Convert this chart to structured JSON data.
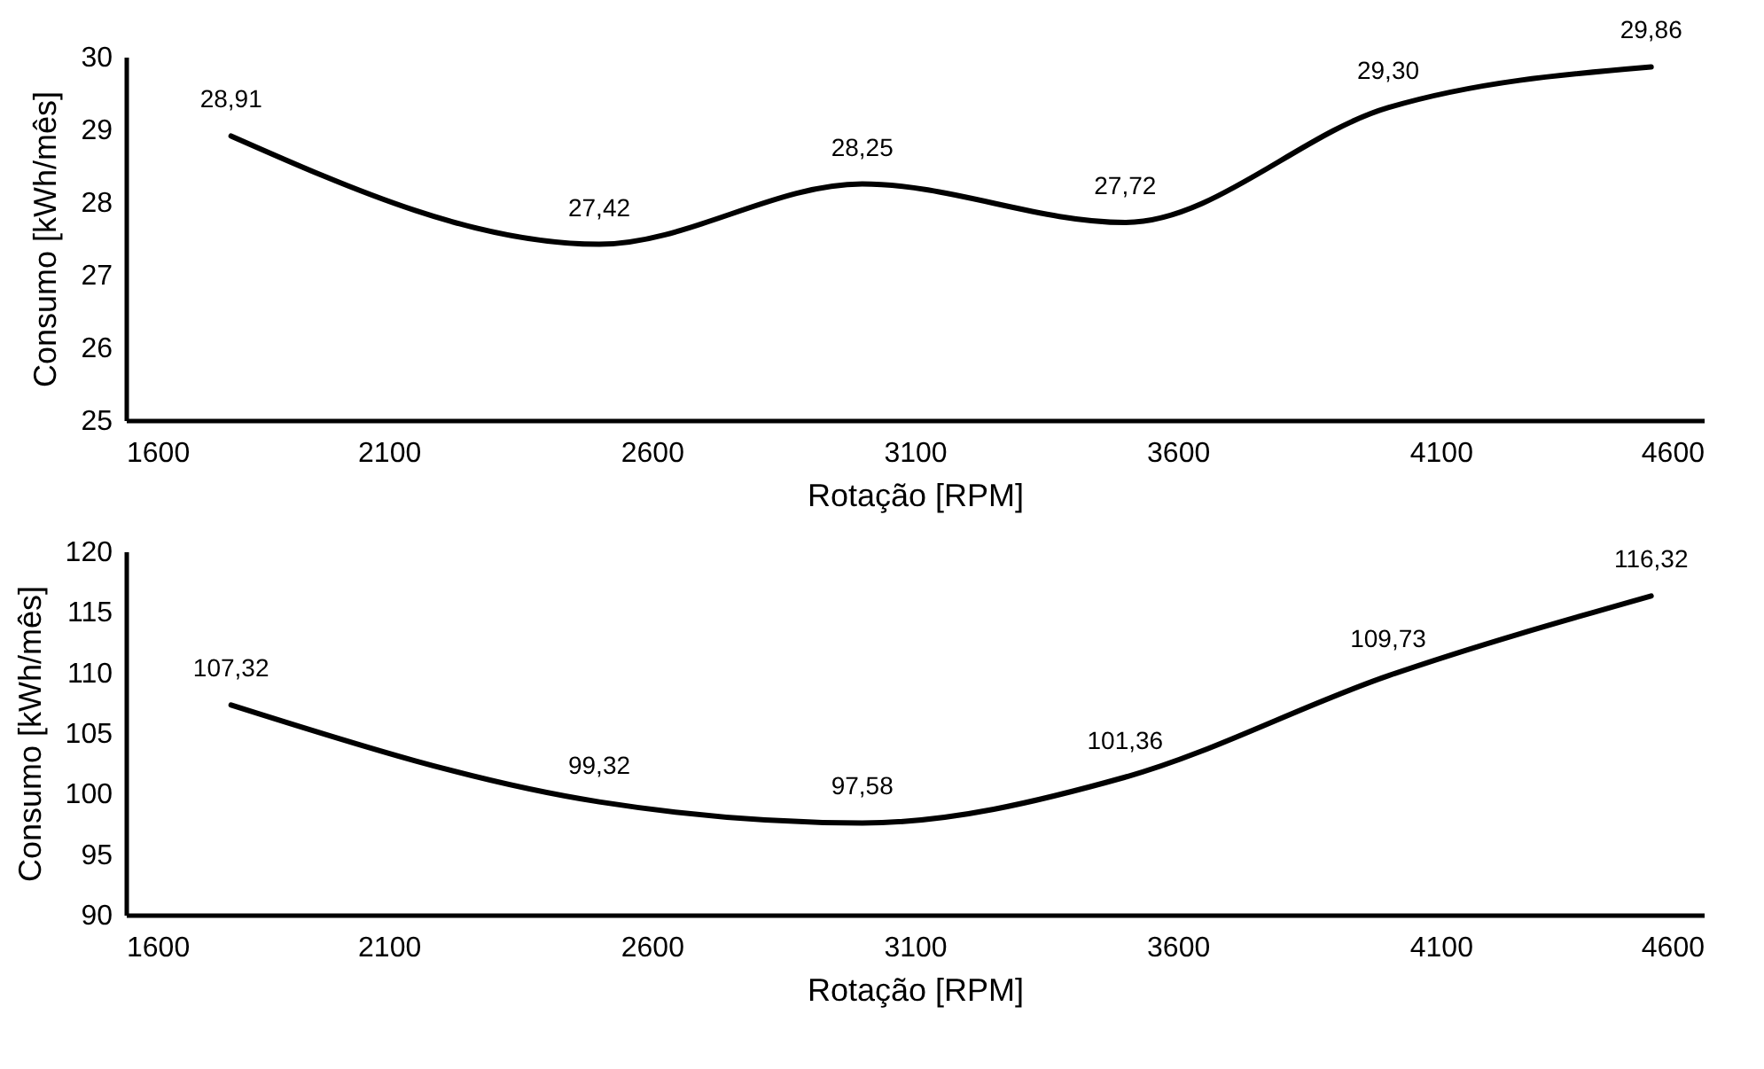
{
  "chart_data": [
    {
      "type": "line",
      "xlabel": "Rotação [RPM]",
      "ylabel": "Consumo [kWh/mês]",
      "x": [
        1800,
        2500,
        3000,
        3500,
        4000,
        4500
      ],
      "series": [
        {
          "color": "#000000",
          "values": [
            28.91,
            27.42,
            28.25,
            27.72,
            29.3,
            29.86
          ],
          "value_labels": [
            "28,91",
            "27,42",
            "28,25",
            "27,72",
            "29,30",
            "29,86"
          ]
        }
      ],
      "xlim": [
        1600,
        4600
      ],
      "xticks": [
        1600,
        2100,
        2600,
        3100,
        3600,
        4100,
        4600
      ],
      "ylim": [
        25,
        30
      ],
      "yticks": [
        25,
        26,
        27,
        28,
        29,
        30
      ],
      "grid": false,
      "marker": "none",
      "line_style": "solid"
    },
    {
      "type": "line",
      "xlabel": "Rotação [RPM]",
      "ylabel": "Consumo [kWh/mês]",
      "x": [
        1800,
        2500,
        3000,
        3500,
        4000,
        4500
      ],
      "series": [
        {
          "color": "#000000",
          "values": [
            107.32,
            99.32,
            97.58,
            101.36,
            109.73,
            116.32
          ],
          "value_labels": [
            "107,32",
            "99,32",
            "97,58",
            "101,36",
            "109,73",
            "116,32"
          ]
        }
      ],
      "xlim": [
        1600,
        4600
      ],
      "xticks": [
        1600,
        2100,
        2600,
        3100,
        3600,
        4100,
        4600
      ],
      "ylim": [
        90,
        120
      ],
      "yticks": [
        90,
        95,
        100,
        105,
        110,
        115,
        120
      ],
      "grid": false,
      "marker": "none",
      "line_style": "solid"
    }
  ]
}
